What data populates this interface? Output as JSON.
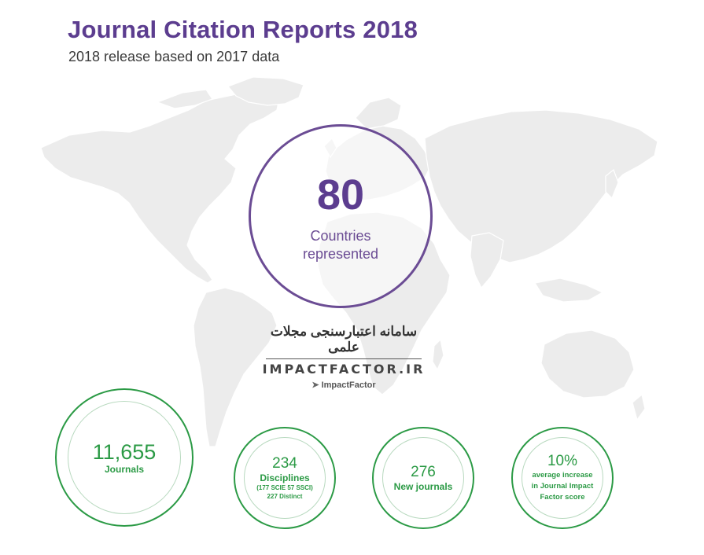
{
  "header": {
    "title": "Journal Citation Reports 2018",
    "subtitle": "2018 release based on 2017 data"
  },
  "main_stat": {
    "value": "80",
    "label_line1": "Countries",
    "label_line2": "represented"
  },
  "watermark": {
    "persian": "سامانه اعتبارسنجی مجلات علمی",
    "latin": "IMPACTFACTOR.IR",
    "brand": "ImpactFactor"
  },
  "stats": [
    {
      "value": "11,655",
      "label": "Journals"
    },
    {
      "value": "234",
      "label": "Disciplines",
      "sub1": "(177 SCIE 57 SSCI)",
      "sub2": "227 Distinct"
    },
    {
      "value": "276",
      "label": "New journals"
    },
    {
      "value": "10%",
      "label_line1": "average increase",
      "label_line2": "in Journal Impact",
      "label_line3": "Factor score"
    }
  ],
  "colors": {
    "purple": "#5c3d8f",
    "green": "#2b9a45",
    "map_gray": "#ececec"
  }
}
